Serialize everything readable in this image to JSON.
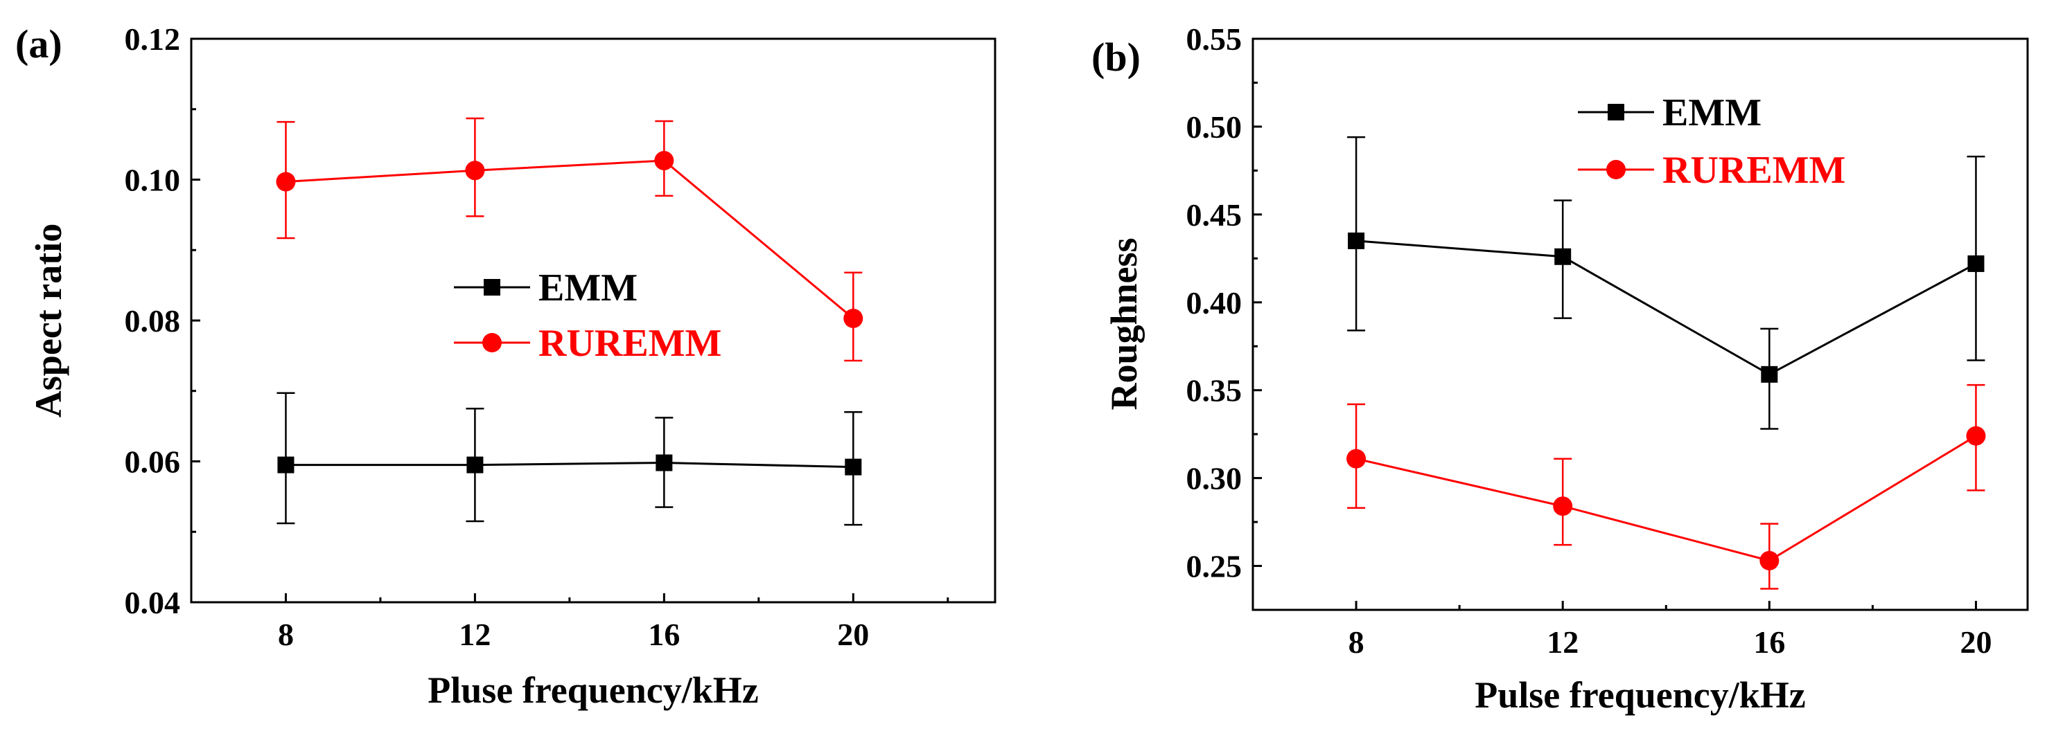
{
  "chart_data": [
    {
      "panel": "(a)",
      "type": "line",
      "xlabel": "Pluse frequency/kHz",
      "ylabel": "Aspect ratio",
      "x": [
        8,
        12,
        16,
        20
      ],
      "xticks": [
        "8",
        "12",
        "16",
        "20"
      ],
      "xlim": [
        6,
        23
      ],
      "ylim": [
        0.04,
        0.12
      ],
      "yticks": [
        "0.04",
        "0.06",
        "0.08",
        "0.10",
        "0.12"
      ],
      "legend_position": "center-right",
      "series": [
        {
          "name": "EMM",
          "color": "#000000",
          "marker": "square",
          "values": [
            0.0595,
            0.0595,
            0.0598,
            0.0592
          ],
          "err_low": [
            0.0512,
            0.0515,
            0.0535,
            0.051
          ],
          "err_high": [
            0.0697,
            0.0675,
            0.0662,
            0.067
          ]
        },
        {
          "name": "RUREMM",
          "color": "#ff0000",
          "marker": "circle",
          "values": [
            0.0997,
            0.1013,
            0.1027,
            0.0803
          ],
          "err_low": [
            0.0917,
            0.0948,
            0.0977,
            0.0743
          ],
          "err_high": [
            0.1082,
            0.1087,
            0.1083,
            0.0868
          ]
        }
      ]
    },
    {
      "panel": "(b)",
      "type": "line",
      "xlabel": "Pulse frequency/kHz",
      "ylabel": "Roughness",
      "x": [
        8,
        12,
        16,
        20
      ],
      "xticks": [
        "8",
        "12",
        "16",
        "20"
      ],
      "xlim": [
        6,
        21
      ],
      "ylim": [
        0.225,
        0.55
      ],
      "yticks": [
        "0.25",
        "0.30",
        "0.35",
        "0.40",
        "0.45",
        "0.50",
        "0.55"
      ],
      "legend_position": "top-center",
      "series": [
        {
          "name": "EMM",
          "color": "#000000",
          "marker": "square",
          "values": [
            0.435,
            0.426,
            0.359,
            0.422
          ],
          "err_low": [
            0.384,
            0.391,
            0.328,
            0.367
          ],
          "err_high": [
            0.494,
            0.458,
            0.385,
            0.483
          ]
        },
        {
          "name": "RUREMM",
          "color": "#ff0000",
          "marker": "circle",
          "values": [
            0.311,
            0.284,
            0.253,
            0.324
          ],
          "err_low": [
            0.283,
            0.262,
            0.237,
            0.293
          ],
          "err_high": [
            0.342,
            0.311,
            0.274,
            0.353
          ]
        }
      ]
    }
  ]
}
